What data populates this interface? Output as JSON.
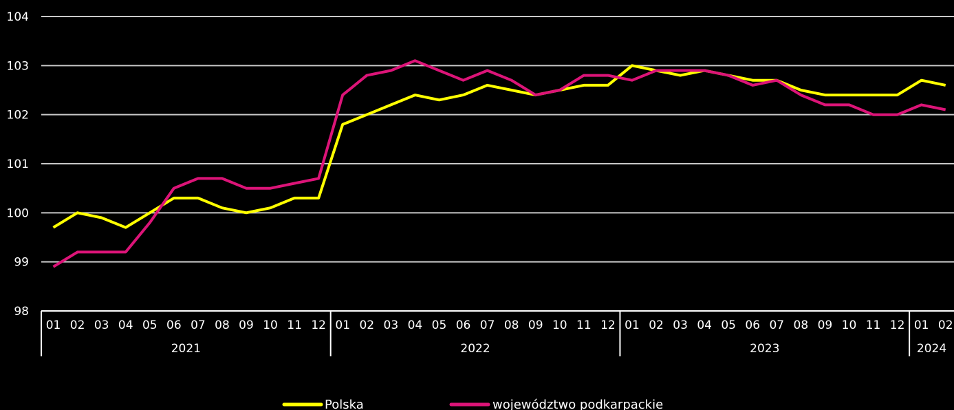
{
  "chart_data": {
    "type": "line",
    "ylim": [
      98,
      104
    ],
    "yticks": [
      "98",
      "99",
      "100",
      "101",
      "102",
      "103",
      "104"
    ],
    "grid": true,
    "legend_position": "bottom",
    "x": [
      "01",
      "02",
      "03",
      "04",
      "05",
      "06",
      "07",
      "08",
      "09",
      "10",
      "11",
      "12",
      "01",
      "02",
      "03",
      "04",
      "05",
      "06",
      "07",
      "08",
      "09",
      "10",
      "11",
      "12",
      "01",
      "02",
      "03",
      "04",
      "05",
      "06",
      "07",
      "08",
      "09",
      "10",
      "11",
      "12",
      "01",
      "02"
    ],
    "years": [
      {
        "label": "2021",
        "months": 12
      },
      {
        "label": "2022",
        "months": 12
      },
      {
        "label": "2023",
        "months": 12
      },
      {
        "label": "2024",
        "months": 2
      }
    ],
    "series": [
      {
        "name": "Polska",
        "color": "#ffff00",
        "values": [
          99.7,
          100.0,
          99.9,
          99.7,
          100.0,
          100.3,
          100.3,
          100.1,
          100.0,
          100.1,
          100.3,
          100.3,
          101.8,
          102.0,
          102.2,
          102.4,
          102.3,
          102.4,
          102.6,
          102.5,
          102.4,
          102.5,
          102.6,
          102.6,
          103.0,
          102.9,
          102.8,
          102.9,
          102.8,
          102.7,
          102.7,
          102.5,
          102.4,
          102.4,
          102.4,
          102.4,
          102.7,
          102.6
        ]
      },
      {
        "name": "województwo podkarpackie",
        "color": "#dc1478",
        "values": [
          98.9,
          99.2,
          99.2,
          99.2,
          99.8,
          100.5,
          100.7,
          100.7,
          100.5,
          100.5,
          100.6,
          100.7,
          102.4,
          102.8,
          102.9,
          103.1,
          102.9,
          102.7,
          102.9,
          102.7,
          102.4,
          102.5,
          102.8,
          102.8,
          102.7,
          102.9,
          102.9,
          102.9,
          102.8,
          102.6,
          102.7,
          102.4,
          102.2,
          102.2,
          102.0,
          102.0,
          102.2,
          102.1
        ]
      }
    ]
  }
}
